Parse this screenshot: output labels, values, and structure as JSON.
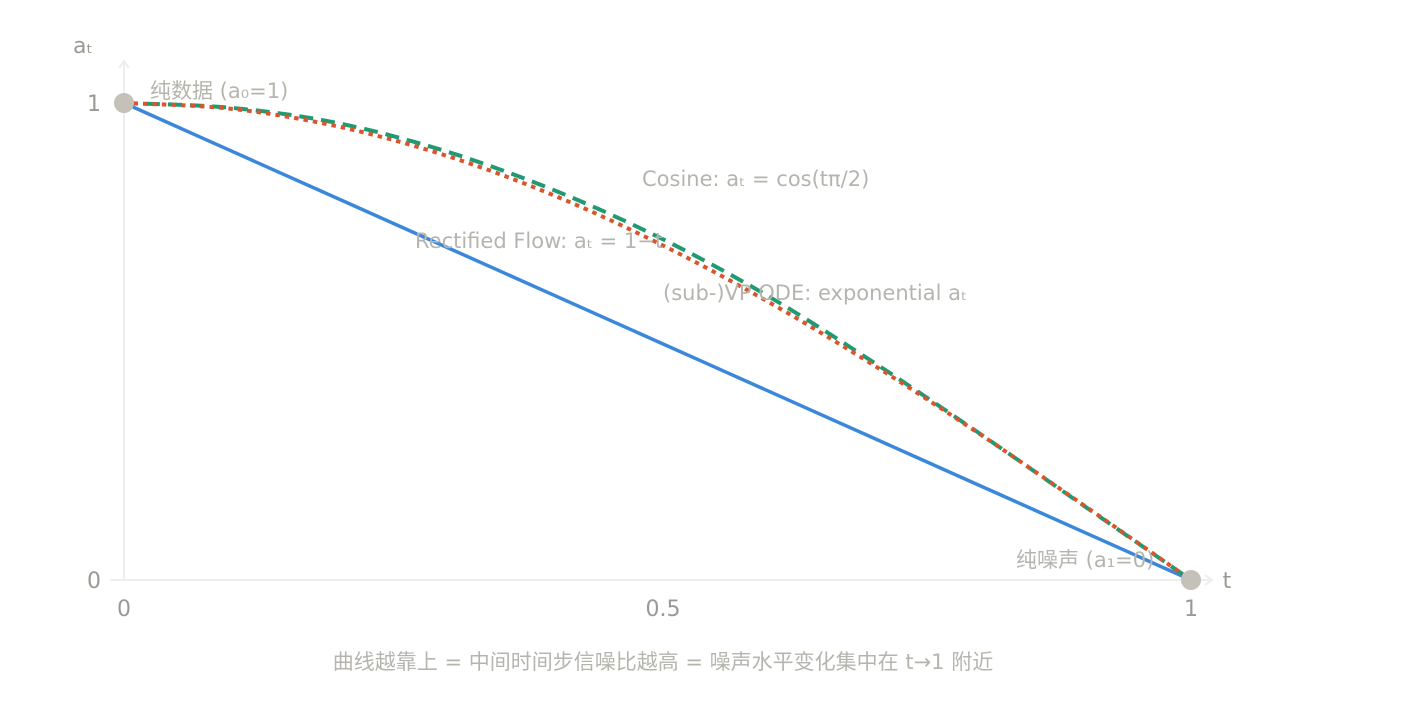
{
  "chart_data": {
    "type": "line",
    "title": "",
    "xlabel": "t",
    "ylabel": "aₜ",
    "xlim": [
      0,
      1
    ],
    "ylim": [
      0,
      1
    ],
    "x_ticks": [
      "0",
      "0.5",
      "1"
    ],
    "y_ticks": [
      "0",
      "1"
    ],
    "grid": false,
    "series": [
      {
        "name": "Rectified Flow",
        "label": "Rectified Flow: aₜ = 1−t",
        "color": "#3b87dc",
        "style": "solid",
        "x": [
          0,
          0.1,
          0.2,
          0.3,
          0.4,
          0.5,
          0.6,
          0.7,
          0.8,
          0.9,
          1.0
        ],
        "values": [
          1,
          0.9,
          0.8,
          0.7,
          0.6,
          0.5,
          0.4,
          0.3,
          0.2,
          0.1,
          0
        ]
      },
      {
        "name": "(sub-)VP ODE",
        "label": "(sub-)VP ODE: exponential aₜ",
        "color": "#1f9a72",
        "style": "dashed",
        "x": [
          0,
          0.1,
          0.2,
          0.3,
          0.4,
          0.5,
          0.6,
          0.7,
          0.8,
          0.9,
          1.0
        ],
        "values": [
          1,
          0.99,
          0.958,
          0.9,
          0.82,
          0.72,
          0.6,
          0.46,
          0.31,
          0.155,
          0
        ]
      },
      {
        "name": "Cosine",
        "label": "Cosine: aₜ = cos(tπ/2)",
        "color": "#d9552d",
        "style": "dotted",
        "x": [
          0,
          0.1,
          0.2,
          0.3,
          0.4,
          0.5,
          0.6,
          0.7,
          0.8,
          0.9,
          1.0
        ],
        "values": [
          1,
          0.988,
          0.951,
          0.891,
          0.809,
          0.707,
          0.588,
          0.454,
          0.309,
          0.156,
          0
        ]
      }
    ],
    "points": [
      {
        "t": 0,
        "a": 1,
        "label": "纯数据 (a₀=1)"
      },
      {
        "t": 1,
        "a": 0,
        "label": "纯噪声 (a₁=0)"
      }
    ],
    "caption": "曲线越靠上 = 中间时间步信噪比越高 = 噪声水平变化集中在 t→1 附近"
  },
  "colors": {
    "axis": "#eeeeee",
    "marker": "#c4c1b8",
    "text": "#b6b5ad"
  }
}
